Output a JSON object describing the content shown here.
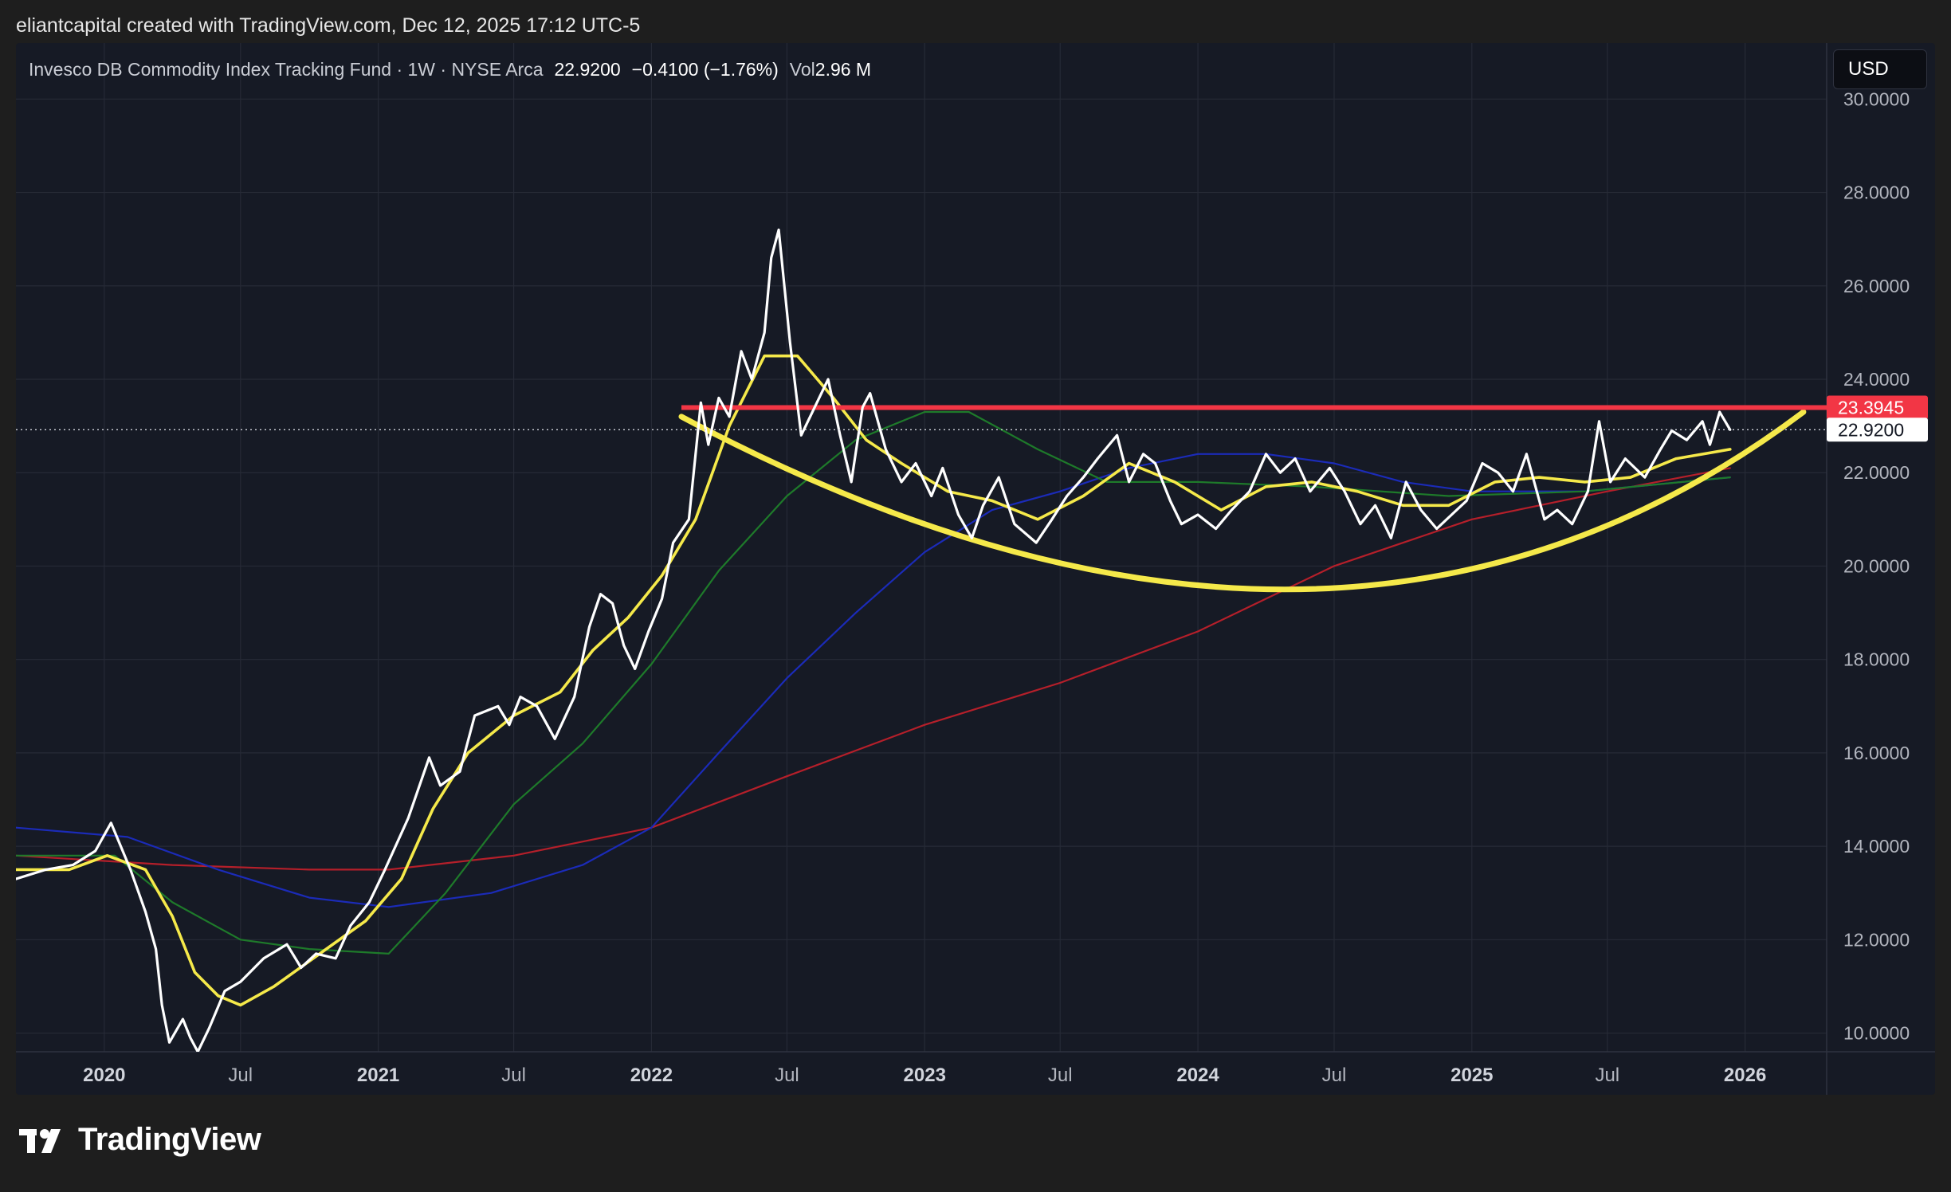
{
  "caption": "eliantcapital created with TradingView.com, Dec 12, 2025 17:12 UTC-5",
  "legend": {
    "symbol": "Invesco DB Commodity Index Tracking Fund · 1W · NYSE Arca",
    "last": "22.9200",
    "change": "−0.4100 (−1.76%)",
    "vol_label": "Vol",
    "vol_value": "2.96 M"
  },
  "currency_button": "USD",
  "brand": "TradingView",
  "colors": {
    "background": "#161a25",
    "price": "#ffffff",
    "ma_fast": "#f5e94a",
    "ma_mid": "#1e7a2a",
    "ma_slow": "#1b2bb8",
    "ma_long": "#b51f2a",
    "resistance": "#f23645",
    "rounding_arc": "#f5e94a"
  },
  "chart_data": {
    "type": "line",
    "x_axis_type": "date",
    "x_ticks": [
      {
        "date": "2020-01-01",
        "label": "2020",
        "bold": true
      },
      {
        "date": "2020-07-01",
        "label": "Jul",
        "bold": false
      },
      {
        "date": "2021-01-01",
        "label": "2021",
        "bold": true
      },
      {
        "date": "2021-07-01",
        "label": "Jul",
        "bold": false
      },
      {
        "date": "2022-01-01",
        "label": "2022",
        "bold": true
      },
      {
        "date": "2022-07-01",
        "label": "Jul",
        "bold": false
      },
      {
        "date": "2023-01-01",
        "label": "2023",
        "bold": true
      },
      {
        "date": "2023-07-01",
        "label": "Jul",
        "bold": false
      },
      {
        "date": "2024-01-01",
        "label": "2024",
        "bold": true
      },
      {
        "date": "2024-07-01",
        "label": "Jul",
        "bold": false
      },
      {
        "date": "2025-01-01",
        "label": "2025",
        "bold": true
      },
      {
        "date": "2025-07-01",
        "label": "Jul",
        "bold": false
      },
      {
        "date": "2026-01-01",
        "label": "2026",
        "bold": true
      }
    ],
    "xlim": [
      "2019-09-05",
      "2026-04-20"
    ],
    "ylim": [
      9.6,
      31.2
    ],
    "y_ticks": [
      "10.0000",
      "12.0000",
      "14.0000",
      "16.0000",
      "18.0000",
      "20.0000",
      "22.0000",
      "24.0000",
      "26.0000",
      "28.0000",
      "30.0000"
    ],
    "grid": true,
    "series": [
      {
        "key": "price",
        "color": "#ffffff",
        "width": 3.2,
        "points": [
          [
            "2019-09-05",
            13.3
          ],
          [
            "2019-10-15",
            13.5
          ],
          [
            "2019-11-20",
            13.6
          ],
          [
            "2019-12-20",
            13.9
          ],
          [
            "2020-01-10",
            14.5
          ],
          [
            "2020-02-05",
            13.5
          ],
          [
            "2020-02-25",
            12.6
          ],
          [
            "2020-03-10",
            11.8
          ],
          [
            "2020-03-18",
            10.6
          ],
          [
            "2020-03-28",
            9.8
          ],
          [
            "2020-04-15",
            10.3
          ],
          [
            "2020-04-25",
            9.9
          ],
          [
            "2020-05-05",
            9.6
          ],
          [
            "2020-05-20",
            10.1
          ],
          [
            "2020-06-10",
            10.9
          ],
          [
            "2020-07-01",
            11.1
          ],
          [
            "2020-08-01",
            11.6
          ],
          [
            "2020-09-01",
            11.9
          ],
          [
            "2020-09-20",
            11.4
          ],
          [
            "2020-10-10",
            11.7
          ],
          [
            "2020-11-05",
            11.6
          ],
          [
            "2020-11-25",
            12.3
          ],
          [
            "2020-12-20",
            12.8
          ],
          [
            "2021-01-10",
            13.5
          ],
          [
            "2021-02-10",
            14.6
          ],
          [
            "2021-03-10",
            15.9
          ],
          [
            "2021-03-25",
            15.3
          ],
          [
            "2021-04-20",
            15.6
          ],
          [
            "2021-05-10",
            16.8
          ],
          [
            "2021-06-10",
            17.0
          ],
          [
            "2021-06-25",
            16.6
          ],
          [
            "2021-07-10",
            17.2
          ],
          [
            "2021-08-01",
            17.0
          ],
          [
            "2021-08-25",
            16.3
          ],
          [
            "2021-09-20",
            17.2
          ],
          [
            "2021-10-10",
            18.7
          ],
          [
            "2021-10-25",
            19.4
          ],
          [
            "2021-11-10",
            19.2
          ],
          [
            "2021-11-25",
            18.3
          ],
          [
            "2021-12-10",
            17.8
          ],
          [
            "2021-12-28",
            18.6
          ],
          [
            "2022-01-15",
            19.3
          ],
          [
            "2022-01-30",
            20.5
          ],
          [
            "2022-02-20",
            21.0
          ],
          [
            "2022-03-08",
            23.5
          ],
          [
            "2022-03-18",
            22.6
          ],
          [
            "2022-04-01",
            23.6
          ],
          [
            "2022-04-15",
            23.2
          ],
          [
            "2022-05-01",
            24.6
          ],
          [
            "2022-05-15",
            24.0
          ],
          [
            "2022-06-01",
            25.0
          ],
          [
            "2022-06-10",
            26.6
          ],
          [
            "2022-06-20",
            27.2
          ],
          [
            "2022-07-05",
            24.8
          ],
          [
            "2022-07-20",
            22.8
          ],
          [
            "2022-08-10",
            23.5
          ],
          [
            "2022-08-25",
            24.0
          ],
          [
            "2022-09-10",
            22.8
          ],
          [
            "2022-09-25",
            21.8
          ],
          [
            "2022-10-10",
            23.4
          ],
          [
            "2022-10-20",
            23.7
          ],
          [
            "2022-11-10",
            22.5
          ],
          [
            "2022-12-01",
            21.8
          ],
          [
            "2022-12-20",
            22.2
          ],
          [
            "2023-01-10",
            21.5
          ],
          [
            "2023-01-25",
            22.1
          ],
          [
            "2023-02-15",
            21.1
          ],
          [
            "2023-03-05",
            20.6
          ],
          [
            "2023-03-20",
            21.3
          ],
          [
            "2023-04-10",
            21.9
          ],
          [
            "2023-05-01",
            20.9
          ],
          [
            "2023-05-30",
            20.5
          ],
          [
            "2023-06-20",
            21.0
          ],
          [
            "2023-07-10",
            21.5
          ],
          [
            "2023-08-01",
            21.9
          ],
          [
            "2023-08-20",
            22.3
          ],
          [
            "2023-09-15",
            22.8
          ],
          [
            "2023-10-01",
            21.8
          ],
          [
            "2023-10-20",
            22.4
          ],
          [
            "2023-11-05",
            22.2
          ],
          [
            "2023-11-25",
            21.4
          ],
          [
            "2023-12-10",
            20.9
          ],
          [
            "2024-01-01",
            21.1
          ],
          [
            "2024-01-25",
            20.8
          ],
          [
            "2024-02-15",
            21.2
          ],
          [
            "2024-03-10",
            21.6
          ],
          [
            "2024-04-01",
            22.4
          ],
          [
            "2024-04-20",
            22.0
          ],
          [
            "2024-05-10",
            22.3
          ],
          [
            "2024-05-30",
            21.6
          ],
          [
            "2024-06-25",
            22.1
          ],
          [
            "2024-07-15",
            21.6
          ],
          [
            "2024-08-05",
            20.9
          ],
          [
            "2024-08-25",
            21.3
          ],
          [
            "2024-09-15",
            20.6
          ],
          [
            "2024-10-05",
            21.8
          ],
          [
            "2024-10-25",
            21.2
          ],
          [
            "2024-11-15",
            20.8
          ],
          [
            "2024-12-05",
            21.1
          ],
          [
            "2024-12-25",
            21.4
          ],
          [
            "2025-01-15",
            22.2
          ],
          [
            "2025-02-05",
            22.0
          ],
          [
            "2025-02-25",
            21.6
          ],
          [
            "2025-03-15",
            22.4
          ],
          [
            "2025-04-08",
            21.0
          ],
          [
            "2025-04-25",
            21.2
          ],
          [
            "2025-05-15",
            20.9
          ],
          [
            "2025-06-05",
            21.6
          ],
          [
            "2025-06-20",
            23.1
          ],
          [
            "2025-07-05",
            21.8
          ],
          [
            "2025-07-25",
            22.3
          ],
          [
            "2025-08-20",
            21.9
          ],
          [
            "2025-09-10",
            22.5
          ],
          [
            "2025-09-25",
            22.9
          ],
          [
            "2025-10-15",
            22.7
          ],
          [
            "2025-11-05",
            23.1
          ],
          [
            "2025-11-15",
            22.6
          ],
          [
            "2025-11-28",
            23.3
          ],
          [
            "2025-12-12",
            22.92
          ]
        ]
      },
      {
        "key": "ma_fast",
        "color": "#f5e94a",
        "width": 3.6,
        "points": [
          [
            "2019-09-05",
            13.5
          ],
          [
            "2019-11-15",
            13.5
          ],
          [
            "2020-01-05",
            13.8
          ],
          [
            "2020-02-25",
            13.5
          ],
          [
            "2020-04-01",
            12.5
          ],
          [
            "2020-05-01",
            11.3
          ],
          [
            "2020-06-01",
            10.8
          ],
          [
            "2020-07-01",
            10.6
          ],
          [
            "2020-08-15",
            11.0
          ],
          [
            "2020-10-15",
            11.7
          ],
          [
            "2020-12-15",
            12.4
          ],
          [
            "2021-02-01",
            13.3
          ],
          [
            "2021-03-15",
            14.8
          ],
          [
            "2021-05-01",
            16.0
          ],
          [
            "2021-07-01",
            16.8
          ],
          [
            "2021-09-01",
            17.3
          ],
          [
            "2021-10-15",
            18.2
          ],
          [
            "2021-12-01",
            18.9
          ],
          [
            "2022-01-15",
            19.8
          ],
          [
            "2022-03-01",
            21.0
          ],
          [
            "2022-04-15",
            23.0
          ],
          [
            "2022-06-01",
            24.5
          ],
          [
            "2022-07-15",
            24.5
          ],
          [
            "2022-09-01",
            23.6
          ],
          [
            "2022-10-15",
            22.7
          ],
          [
            "2022-12-01",
            22.2
          ],
          [
            "2023-02-01",
            21.6
          ],
          [
            "2023-04-01",
            21.4
          ],
          [
            "2023-06-01",
            21.0
          ],
          [
            "2023-08-01",
            21.5
          ],
          [
            "2023-10-01",
            22.2
          ],
          [
            "2023-12-01",
            21.8
          ],
          [
            "2024-02-01",
            21.2
          ],
          [
            "2024-04-01",
            21.7
          ],
          [
            "2024-06-01",
            21.8
          ],
          [
            "2024-08-01",
            21.6
          ],
          [
            "2024-10-01",
            21.3
          ],
          [
            "2024-12-01",
            21.3
          ],
          [
            "2025-02-01",
            21.8
          ],
          [
            "2025-04-01",
            21.9
          ],
          [
            "2025-06-01",
            21.8
          ],
          [
            "2025-08-01",
            21.9
          ],
          [
            "2025-10-01",
            22.3
          ],
          [
            "2025-12-12",
            22.5
          ]
        ]
      },
      {
        "key": "ma_mid",
        "color": "#1e7a2a",
        "width": 2.2,
        "points": [
          [
            "2019-09-05",
            13.8
          ],
          [
            "2020-01-15",
            13.8
          ],
          [
            "2020-04-01",
            12.8
          ],
          [
            "2020-07-01",
            12.0
          ],
          [
            "2020-10-01",
            11.8
          ],
          [
            "2021-01-15",
            11.7
          ],
          [
            "2021-04-01",
            13.0
          ],
          [
            "2021-07-01",
            14.9
          ],
          [
            "2021-10-01",
            16.2
          ],
          [
            "2022-01-01",
            17.9
          ],
          [
            "2022-04-01",
            19.9
          ],
          [
            "2022-07-01",
            21.5
          ],
          [
            "2022-10-01",
            22.7
          ],
          [
            "2023-01-01",
            23.3
          ],
          [
            "2023-03-01",
            23.3
          ],
          [
            "2023-06-01",
            22.5
          ],
          [
            "2023-09-01",
            21.8
          ],
          [
            "2024-01-01",
            21.8
          ],
          [
            "2024-06-01",
            21.7
          ],
          [
            "2024-12-01",
            21.5
          ],
          [
            "2025-06-01",
            21.6
          ],
          [
            "2025-12-12",
            21.9
          ]
        ]
      },
      {
        "key": "ma_slow",
        "color": "#1b2bb8",
        "width": 2.2,
        "points": [
          [
            "2019-09-05",
            14.4
          ],
          [
            "2020-02-01",
            14.2
          ],
          [
            "2020-06-01",
            13.5
          ],
          [
            "2020-10-01",
            12.9
          ],
          [
            "2021-01-15",
            12.7
          ],
          [
            "2021-06-01",
            13.0
          ],
          [
            "2021-10-01",
            13.6
          ],
          [
            "2022-01-01",
            14.4
          ],
          [
            "2022-04-01",
            16.0
          ],
          [
            "2022-07-01",
            17.6
          ],
          [
            "2022-10-01",
            19.0
          ],
          [
            "2023-01-01",
            20.3
          ],
          [
            "2023-04-01",
            21.2
          ],
          [
            "2023-07-01",
            21.6
          ],
          [
            "2023-10-01",
            22.1
          ],
          [
            "2024-01-01",
            22.4
          ],
          [
            "2024-04-01",
            22.4
          ],
          [
            "2024-07-01",
            22.2
          ],
          [
            "2024-10-01",
            21.8
          ],
          [
            "2025-01-01",
            21.6
          ],
          [
            "2025-06-01",
            21.6
          ],
          [
            "2025-12-12",
            21.9
          ]
        ]
      },
      {
        "key": "ma_long",
        "color": "#b51f2a",
        "width": 2.2,
        "points": [
          [
            "2019-09-05",
            13.8
          ],
          [
            "2020-04-01",
            13.6
          ],
          [
            "2020-10-01",
            13.5
          ],
          [
            "2021-01-15",
            13.5
          ],
          [
            "2021-07-01",
            13.8
          ],
          [
            "2022-01-01",
            14.4
          ],
          [
            "2022-07-01",
            15.5
          ],
          [
            "2023-01-01",
            16.6
          ],
          [
            "2023-07-01",
            17.5
          ],
          [
            "2024-01-01",
            18.6
          ],
          [
            "2024-07-01",
            20.0
          ],
          [
            "2025-01-01",
            21.0
          ],
          [
            "2025-07-01",
            21.6
          ],
          [
            "2025-12-12",
            22.1
          ]
        ]
      }
    ],
    "annotations": {
      "resistance_level": 23.3945,
      "resistance_start": "2022-02-10",
      "arc_start": [
        "2022-02-10",
        23.2
      ],
      "arc_bottom": [
        "2024-05-01",
        19.5
      ],
      "arc_end": [
        "2026-03-20",
        23.3
      ],
      "last_price": 22.92
    },
    "price_labels": {
      "resistance": "23.3945",
      "last": "22.9200"
    }
  }
}
